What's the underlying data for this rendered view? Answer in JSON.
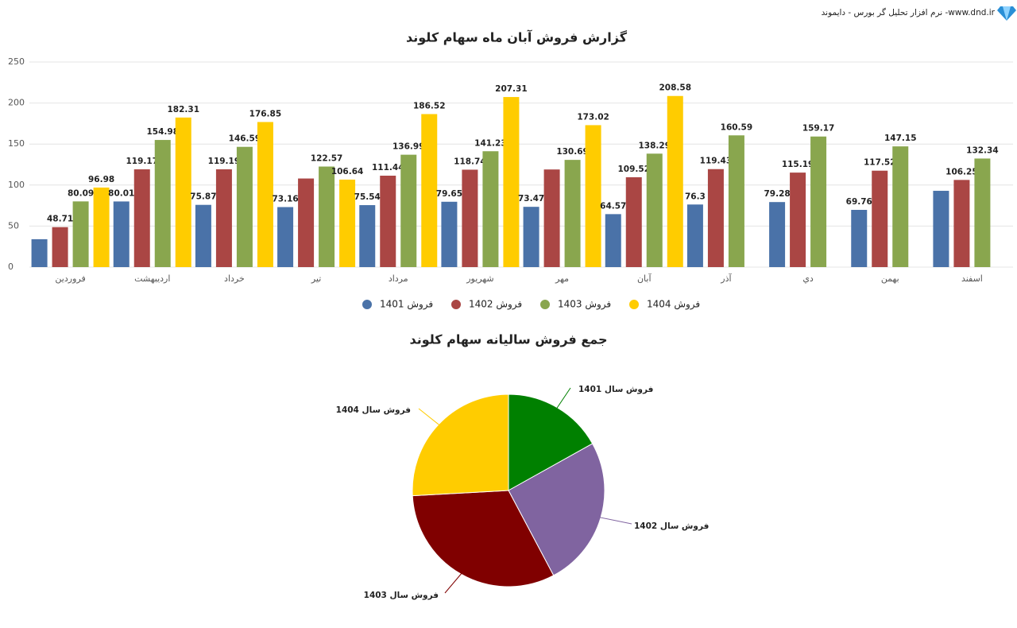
{
  "header": {
    "text": "نرم افزار تحلیل گر بورس - دایموند -www.dnd.ir"
  },
  "chart_data": [
    {
      "type": "bar",
      "title": "گزارش فروش آبان ماه سهام کلوند",
      "categories": [
        "فروردین",
        "اردیبهشت",
        "خرداد",
        "تیر",
        "مرداد",
        "شهریور",
        "مهر",
        "آبان",
        "آذر",
        "دي",
        "بهمن",
        "اسفند"
      ],
      "ylim": [
        0,
        250
      ],
      "yticks": [
        0,
        50,
        100,
        150,
        200,
        250
      ],
      "grid": true,
      "legend": "bottom",
      "series": [
        {
          "name": "فروش 1401",
          "color": "#4a72a8",
          "values": [
            34,
            80.01,
            75.87,
            73.16,
            75.54,
            79.65,
            73.47,
            64.57,
            76.3,
            79.28,
            69.76,
            93
          ],
          "value_labels": [
            null,
            "80.01",
            "75.87",
            "73.16",
            "75.54",
            "79.65",
            "73.47",
            "64.57",
            "76.3",
            "79.28",
            "69.76",
            null
          ]
        },
        {
          "name": "فروش 1402",
          "color": "#aa4644",
          "values": [
            48.71,
            119.17,
            119.19,
            108,
            111.44,
            118.74,
            119,
            109.52,
            119.43,
            115.19,
            117.52,
            106.25
          ],
          "value_labels": [
            "48.71",
            "119.17",
            "119.19",
            null,
            "111.44",
            "118.74",
            null,
            "109.52",
            "119.43",
            "115.19",
            "117.52",
            "106.25"
          ]
        },
        {
          "name": "فروش 1403",
          "color": "#89a64e",
          "values": [
            80.09,
            154.98,
            146.59,
            122.57,
            136.99,
            141.23,
            130.69,
            138.29,
            160.59,
            159.17,
            147.15,
            132.34
          ],
          "value_labels": [
            "80.09",
            "154.98",
            "146.59",
            "122.57",
            "136.99",
            "141.23",
            "130.69",
            "138.29",
            "160.59",
            "159.17",
            "147.15",
            "132.34"
          ]
        },
        {
          "name": "فروش 1404",
          "color": "#ffcc00",
          "values": [
            96.98,
            182.31,
            176.85,
            106.64,
            186.52,
            207.31,
            173.02,
            208.58,
            null,
            null,
            null,
            null
          ],
          "value_labels": [
            "96.98",
            "182.31",
            "176.85",
            "106.64",
            "186.52",
            "207.31",
            "173.02",
            "208.58",
            null,
            null,
            null,
            null
          ]
        }
      ]
    },
    {
      "type": "pie",
      "title": "جمع فروش سالیانه سهام کلوند",
      "categories": [
        "فروش سال 1401",
        "فروش سال 1402",
        "فروش سال 1403",
        "فروش سال 1404"
      ],
      "values": [
        875,
        1311,
        1651,
        1339
      ],
      "colors": [
        "#008000",
        "#8064a0",
        "#800000",
        "#ffcc00"
      ]
    }
  ]
}
